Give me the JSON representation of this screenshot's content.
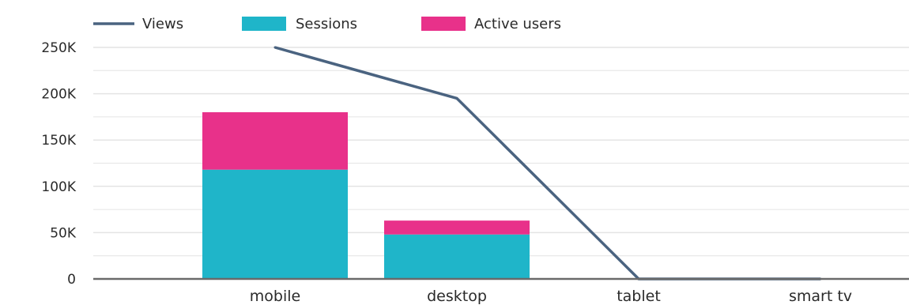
{
  "chart_data": {
    "type": "bar",
    "stacked": true,
    "categories": [
      "mobile",
      "desktop",
      "tablet",
      "smart tv"
    ],
    "series": [
      {
        "name": "Sessions",
        "kind": "bar",
        "color": "#1fb5c9",
        "values": [
          118000,
          48000,
          0,
          0
        ]
      },
      {
        "name": "Active users",
        "kind": "bar",
        "color": "#e8318a",
        "values": [
          62000,
          15000,
          0,
          0
        ]
      },
      {
        "name": "Views",
        "kind": "line",
        "color": "#4a6380",
        "values": [
          250000,
          195000,
          0,
          0
        ]
      }
    ],
    "yticks": [
      {
        "value": 0,
        "label": "0"
      },
      {
        "value": 50000,
        "label": "50K"
      },
      {
        "value": 100000,
        "label": "100K"
      },
      {
        "value": 150000,
        "label": "150K"
      },
      {
        "value": 200000,
        "label": "200K"
      },
      {
        "value": 250000,
        "label": "250K"
      }
    ],
    "ylim": [
      0,
      250000
    ],
    "legend": {
      "position": "top-left",
      "items": [
        {
          "name": "Views",
          "marker": "line",
          "color": "#4a6380"
        },
        {
          "name": "Sessions",
          "marker": "box",
          "color": "#1fb5c9"
        },
        {
          "name": "Active users",
          "marker": "box",
          "color": "#e8318a"
        }
      ]
    },
    "grid": true,
    "grid_color": "#e4e4e4",
    "axis_color": "#6a6a6a"
  }
}
